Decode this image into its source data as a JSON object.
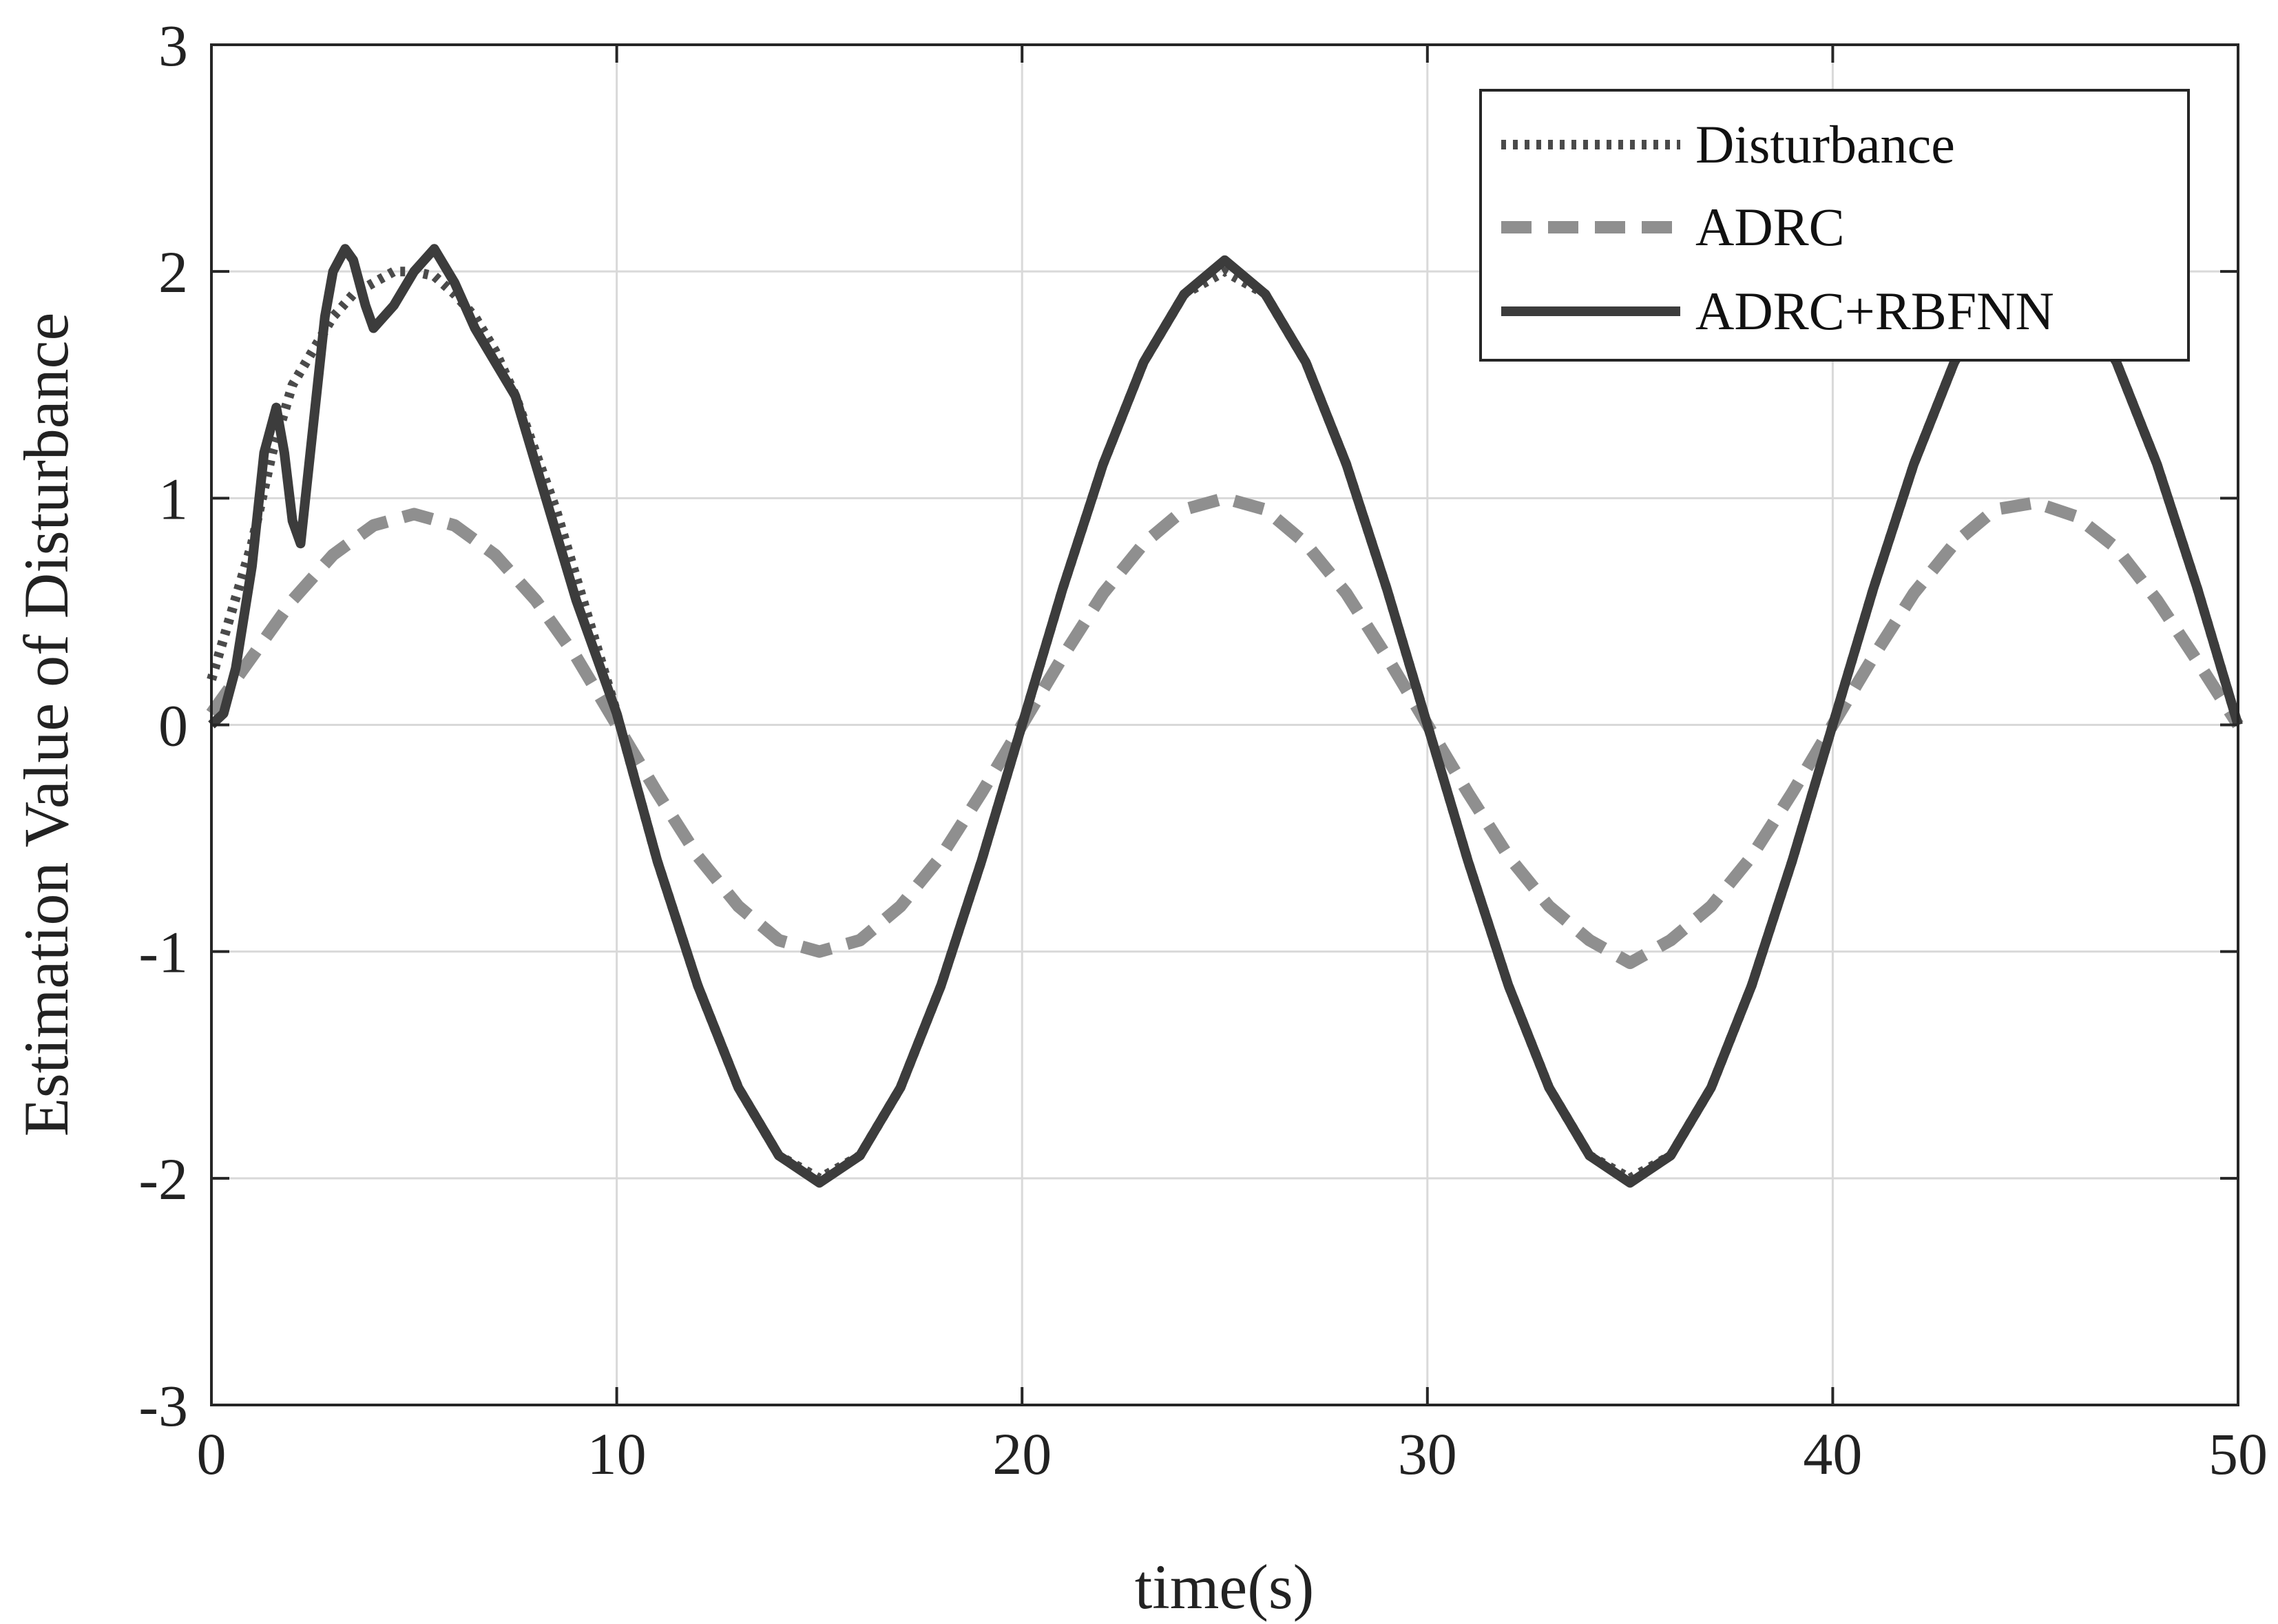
{
  "chart_data": {
    "type": "line",
    "xlabel": "time(s)",
    "ylabel": "Estimation Value of Disturbance",
    "xlim": [
      0,
      50
    ],
    "ylim": [
      -3,
      3
    ],
    "xticks": [
      0,
      10,
      20,
      30,
      40,
      50
    ],
    "yticks": [
      -3,
      -2,
      -1,
      0,
      1,
      2,
      3
    ],
    "grid": true,
    "legend_position": "top-right",
    "series": [
      {
        "name": "Disturbance",
        "style": "dotted",
        "color": "#4a4a4a",
        "x": [
          0,
          0.5,
          1,
          1.5,
          2,
          2.5,
          3,
          3.5,
          4,
          4.5,
          5,
          5.5,
          6,
          6.5,
          7,
          7.5,
          8,
          8.5,
          9,
          9.5,
          10,
          11,
          12,
          13,
          14,
          15,
          16,
          17,
          18,
          19,
          20,
          21,
          22,
          23,
          24,
          25,
          26,
          27,
          28,
          29,
          30,
          31,
          32,
          33,
          34,
          35,
          36,
          37,
          38,
          39,
          40,
          41,
          42,
          43,
          44,
          45,
          46,
          47,
          48,
          49,
          50
        ],
        "y": [
          0.2,
          0.5,
          0.8,
          1.2,
          1.5,
          1.65,
          1.8,
          1.9,
          1.95,
          2.0,
          2.0,
          1.98,
          1.9,
          1.8,
          1.65,
          1.45,
          1.2,
          0.95,
          0.65,
          0.35,
          0.05,
          -0.6,
          -1.15,
          -1.6,
          -1.9,
          -2.0,
          -1.9,
          -1.6,
          -1.15,
          -0.6,
          0.0,
          0.6,
          1.15,
          1.6,
          1.9,
          2.0,
          1.9,
          1.6,
          1.15,
          0.6,
          0.0,
          -0.6,
          -1.15,
          -1.6,
          -1.9,
          -2.0,
          -1.9,
          -1.6,
          -1.15,
          -0.6,
          0.0,
          0.6,
          1.15,
          1.6,
          1.9,
          2.0,
          1.9,
          1.6,
          1.15,
          0.6,
          0.0
        ]
      },
      {
        "name": "ADRC",
        "style": "dashed",
        "color": "#8f8f8f",
        "x": [
          0,
          1,
          2,
          3,
          4,
          5,
          6,
          7,
          8,
          9,
          10,
          11,
          12,
          13,
          14,
          15,
          16,
          17,
          18,
          19,
          20,
          21,
          22,
          23,
          24,
          25,
          26,
          27,
          28,
          29,
          30,
          31,
          32,
          33,
          34,
          35,
          36,
          37,
          38,
          39,
          40,
          41,
          42,
          43,
          44,
          45,
          46,
          47,
          48,
          49,
          50
        ],
        "y": [
          0.05,
          0.3,
          0.55,
          0.75,
          0.88,
          0.93,
          0.88,
          0.75,
          0.55,
          0.3,
          0.0,
          -0.3,
          -0.58,
          -0.8,
          -0.95,
          -1.0,
          -0.95,
          -0.8,
          -0.58,
          -0.3,
          0.0,
          0.3,
          0.58,
          0.8,
          0.95,
          1.0,
          0.95,
          0.8,
          0.58,
          0.3,
          0.0,
          -0.3,
          -0.58,
          -0.8,
          -0.95,
          -1.05,
          -0.95,
          -0.8,
          -0.58,
          -0.3,
          0.0,
          0.3,
          0.58,
          0.8,
          0.95,
          0.98,
          0.92,
          0.78,
          0.55,
          0.28,
          0.0
        ]
      },
      {
        "name": "ADRC+RBFNN",
        "style": "solid",
        "color": "#3c3c3c",
        "x": [
          0,
          0.3,
          0.6,
          1.0,
          1.3,
          1.6,
          1.8,
          2.0,
          2.2,
          2.5,
          2.8,
          3.0,
          3.3,
          3.5,
          3.8,
          4.0,
          4.5,
          5.0,
          5.5,
          6.0,
          6.5,
          7.0,
          7.5,
          8.0,
          8.5,
          9.0,
          9.5,
          10,
          11,
          12,
          13,
          14,
          15,
          16,
          17,
          18,
          19,
          20,
          21,
          22,
          23,
          24,
          25,
          26,
          27,
          28,
          29,
          30,
          31,
          32,
          33,
          34,
          35,
          36,
          37,
          38,
          39,
          40,
          41,
          42,
          43,
          44,
          45,
          46,
          47,
          48,
          49,
          50
        ],
        "y": [
          0.0,
          0.05,
          0.25,
          0.7,
          1.2,
          1.4,
          1.2,
          0.9,
          0.8,
          1.3,
          1.8,
          2.0,
          2.1,
          2.05,
          1.85,
          1.75,
          1.85,
          2.0,
          2.1,
          1.95,
          1.75,
          1.6,
          1.45,
          1.15,
          0.85,
          0.55,
          0.3,
          0.05,
          -0.6,
          -1.15,
          -1.6,
          -1.9,
          -2.02,
          -1.9,
          -1.6,
          -1.15,
          -0.6,
          0.0,
          0.6,
          1.15,
          1.6,
          1.9,
          2.05,
          1.9,
          1.6,
          1.15,
          0.6,
          0.0,
          -0.6,
          -1.15,
          -1.6,
          -1.9,
          -2.02,
          -1.9,
          -1.6,
          -1.15,
          -0.6,
          0.0,
          0.6,
          1.15,
          1.6,
          1.9,
          2.02,
          1.9,
          1.6,
          1.15,
          0.6,
          0.0
        ]
      }
    ]
  }
}
